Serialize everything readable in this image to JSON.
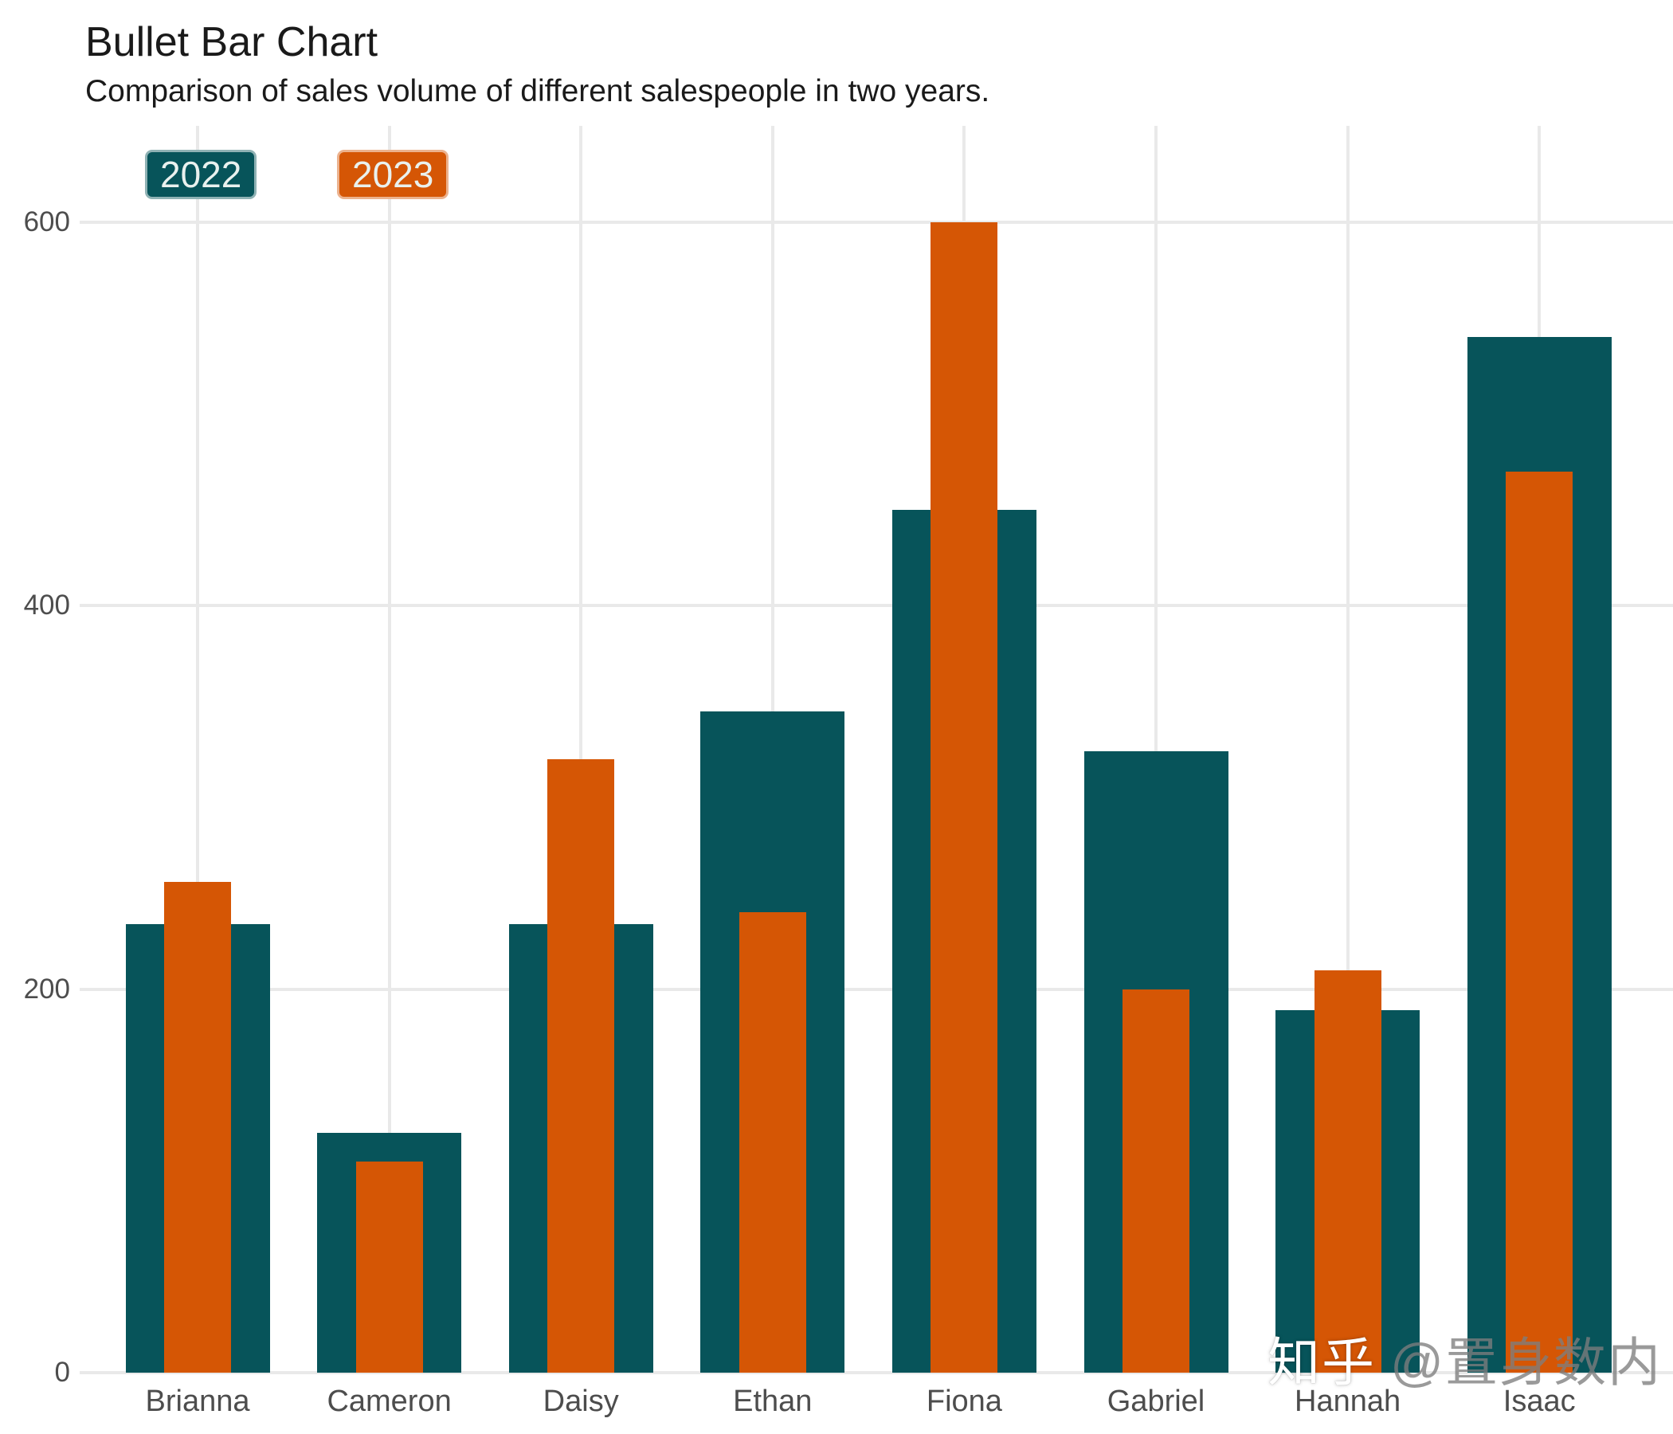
{
  "header": {
    "title": "Bullet Bar Chart",
    "subtitle": "Comparison of sales volume of different salespeople in two years."
  },
  "chart_data": {
    "type": "bar",
    "subtype": "bullet",
    "title": "Bullet Bar Chart",
    "subtitle": "Comparison of sales volume of different salespeople in two years.",
    "categories": [
      "Brianna",
      "Cameron",
      "Daisy",
      "Ethan",
      "Fiona",
      "Gabriel",
      "Hannah",
      "Isaac"
    ],
    "series": [
      {
        "name": "2022",
        "color": "#07545A",
        "role": "outer-wide-bar",
        "values": [
          234,
          125,
          234,
          345,
          450,
          324,
          189,
          540
        ]
      },
      {
        "name": "2023",
        "color": "#D55605",
        "role": "inner-narrow-bar",
        "values": [
          256,
          110,
          320,
          240,
          600,
          200,
          210,
          470
        ]
      }
    ],
    "xlabel": "",
    "ylabel": "",
    "ylim": [
      0,
      600
    ],
    "yticks": [
      0,
      200,
      400,
      600
    ],
    "grid": true,
    "gridlines": "horizontal-at-yticks-and-vertical-at-categories",
    "legend_position": "top-left-inside"
  },
  "legend": {
    "items": [
      {
        "label": "2022",
        "color": "#07545A"
      },
      {
        "label": "2023",
        "color": "#D55605"
      }
    ]
  },
  "watermark": {
    "brand": "知乎",
    "handle": "@置身数内"
  },
  "colors": {
    "background": "#FFFFFF",
    "grid": "#E9E9E9",
    "axis_text": "#4D4D4D",
    "title_text": "#1A1A1A",
    "series_2022": "#07545A",
    "series_2023": "#D55605",
    "legend_text": "#E9F1EE"
  }
}
